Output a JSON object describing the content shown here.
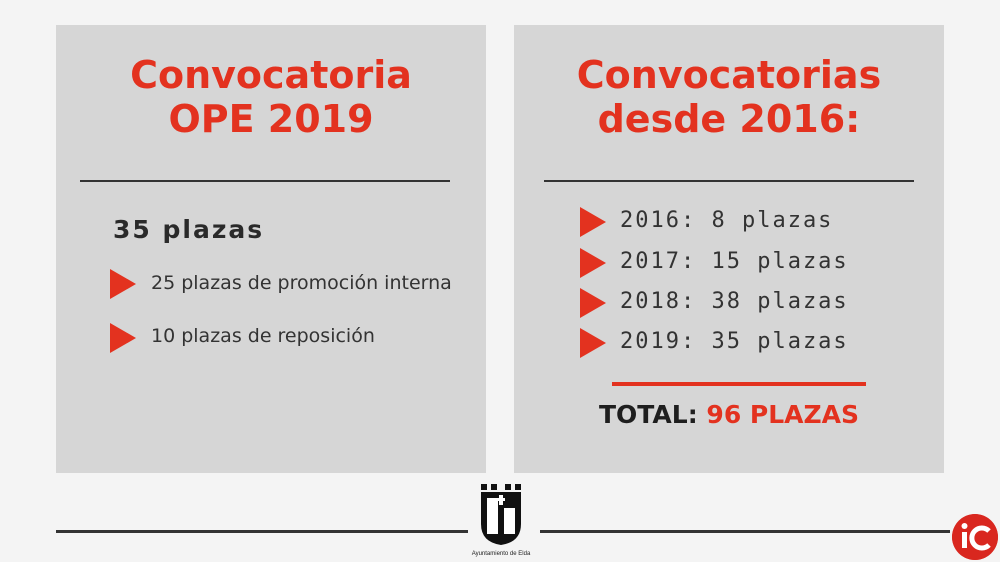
{
  "left_panel": {
    "title_line1": "Convocatoria",
    "title_line2": "OPE 2019",
    "subheading": "35 plazas",
    "items": [
      "25 plazas de promoción interna",
      "10 plazas de reposición"
    ]
  },
  "right_panel": {
    "title_line1": "Convocatorias",
    "title_line2": "desde 2016:",
    "items": [
      "2016: 8 plazas",
      "2017: 15 plazas",
      "2018: 38 plazas",
      "2019: 35 plazas"
    ],
    "total_label": "TOTAL:",
    "total_value": "96 PLAZAS"
  },
  "footer": {
    "crest_caption": "Ayuntamiento de Elda"
  },
  "colors": {
    "accent": "#e3321f",
    "panel": "#d6d6d6",
    "background": "#f4f4f4"
  }
}
